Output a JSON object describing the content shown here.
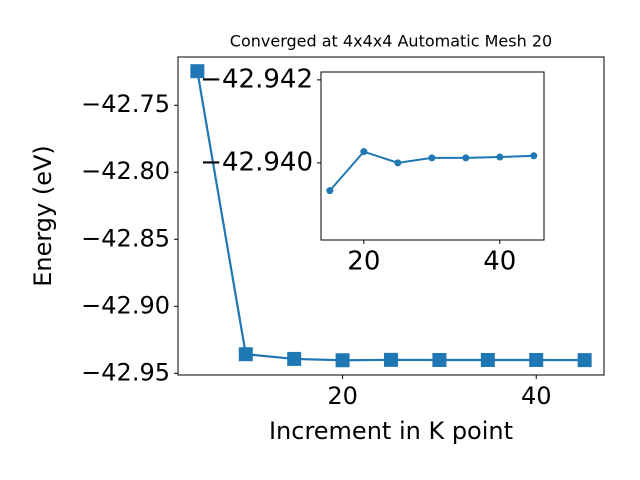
{
  "chart_data": [
    {
      "type": "line",
      "title": "Converged at 4x4x4 Automatic Mesh 20",
      "x_label": "Increment in K point",
      "y_label": "Energy (eV)",
      "x": [
        5,
        10,
        15,
        20,
        25,
        30,
        35,
        40,
        45
      ],
      "values": [
        -42.7246,
        -42.9358,
        -42.9393,
        -42.9403,
        -42.94,
        -42.9401,
        -42.9401,
        -42.9401,
        -42.9402
      ],
      "color": "#1f77b4",
      "marker": "square",
      "xlim": [
        3,
        47
      ],
      "ylim": [
        -42.9513,
        -42.714
      ],
      "xticks": [
        20,
        40
      ],
      "yticks": [
        {
          "value": -42.95,
          "label": "−42.95"
        },
        {
          "value": -42.9,
          "label": "−42.90"
        },
        {
          "value": -42.85,
          "label": "−42.85"
        },
        {
          "value": -42.8,
          "label": "−42.80"
        },
        {
          "value": -42.75,
          "label": "−42.75"
        }
      ]
    },
    {
      "type": "line",
      "x": [
        15,
        20,
        25,
        30,
        35,
        40,
        45
      ],
      "values": [
        -42.93933,
        -42.94027,
        -42.94,
        -42.94012,
        -42.94012,
        -42.94014,
        -42.94017
      ],
      "color": "#1f77b4",
      "marker": "circle",
      "xlim": [
        13.7,
        46.5
      ],
      "ylim": [
        -42.93814,
        -42.94219
      ],
      "xticks": [
        20,
        40
      ],
      "yticks": [
        {
          "value": -42.94,
          "label": "−42.940"
        },
        {
          "value": -42.942,
          "label": "−42.942"
        }
      ]
    }
  ]
}
